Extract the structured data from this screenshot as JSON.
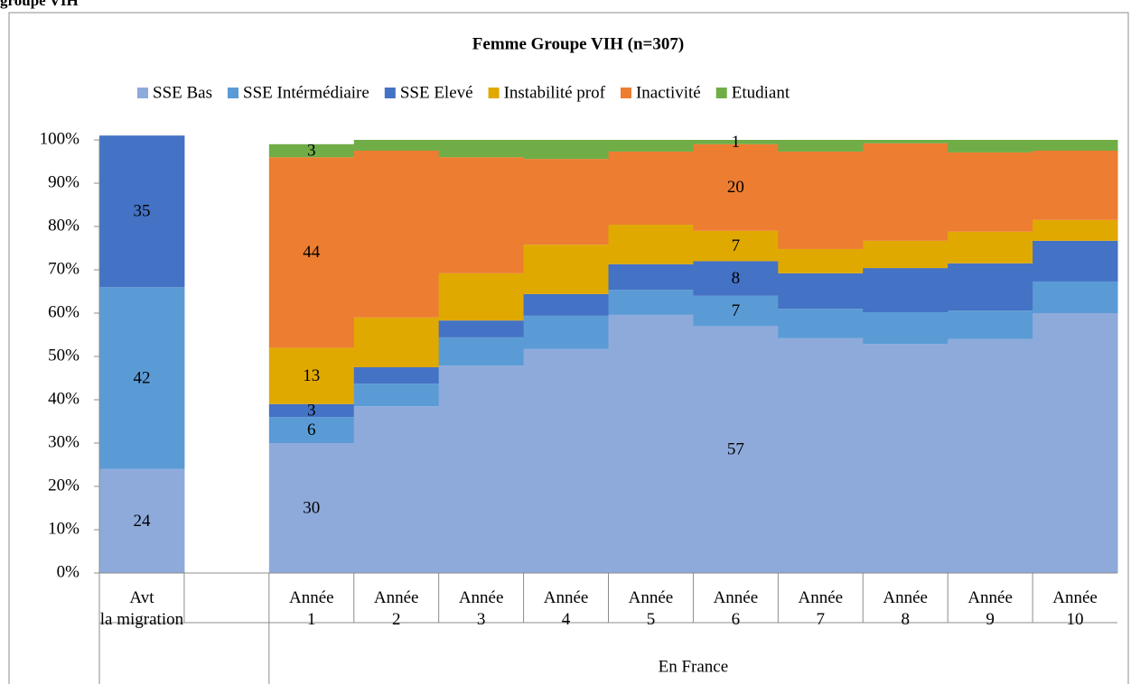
{
  "heading": "groupe VIH",
  "chart_data": {
    "type": "stacked_bar_100",
    "title": "Femme Groupe VIH (n=307)",
    "categories": [
      "Avt\nla migration",
      null,
      "Année\n1",
      "Année\n2",
      "Année\n3",
      "Année\n4",
      "Année\n5",
      "Année\n6",
      "Année\n7",
      "Année\n8",
      "Année\n9",
      "Année\n10"
    ],
    "group_label": "En France",
    "ylim": [
      0,
      100
    ],
    "yticks": [
      {
        "value": 0,
        "label": "0%"
      },
      {
        "value": 10,
        "label": "10%"
      },
      {
        "value": 20,
        "label": "20%"
      },
      {
        "value": 30,
        "label": "30%"
      },
      {
        "value": 40,
        "label": "40%"
      },
      {
        "value": 50,
        "label": "50%"
      },
      {
        "value": 60,
        "label": "60%"
      },
      {
        "value": 70,
        "label": "70%"
      },
      {
        "value": 80,
        "label": "80%"
      },
      {
        "value": 90,
        "label": "90%"
      },
      {
        "value": 100,
        "label": "100%"
      }
    ],
    "legend": "top",
    "series": [
      {
        "name": "SSE Bas",
        "color": "#8eaadb",
        "values": [
          24,
          null,
          30,
          38.5,
          47.9,
          51.7,
          59.6,
          57,
          54.2,
          52.9,
          54,
          60
        ],
        "value_labels": [
          "24",
          null,
          "30",
          null,
          null,
          null,
          null,
          "57",
          null,
          null,
          null,
          null
        ]
      },
      {
        "name": "SSE Intérmédiaire",
        "color": "#5b9bd5",
        "values": [
          42,
          null,
          6,
          5.2,
          6.5,
          7.7,
          5.8,
          7,
          6.8,
          7.3,
          6.6,
          7.3
        ],
        "value_labels": [
          "42",
          null,
          "6",
          null,
          null,
          null,
          null,
          "7",
          null,
          null,
          null,
          null
        ]
      },
      {
        "name": "SSE Elevé",
        "color": "#4472c4",
        "values": [
          35,
          null,
          3,
          3.8,
          3.9,
          5,
          5.9,
          8,
          8.2,
          10.2,
          10.9,
          9.4
        ],
        "value_labels": [
          "35",
          null,
          "3",
          null,
          null,
          null,
          null,
          "8",
          null,
          null,
          null,
          null
        ]
      },
      {
        "name": "Instabilité prof",
        "color": "#e0a900",
        "values": [
          null,
          null,
          13,
          11.5,
          10.9,
          11.4,
          9.1,
          7,
          5.6,
          6.3,
          7.3,
          4.8
        ],
        "value_labels": [
          null,
          null,
          "13",
          null,
          null,
          null,
          null,
          "7",
          null,
          null,
          null,
          null
        ]
      },
      {
        "name": "Inactivité",
        "color": "#ed7d31",
        "values": [
          null,
          null,
          44,
          38.5,
          26.8,
          19.8,
          16.9,
          20,
          22.5,
          22.5,
          18.3,
          16
        ],
        "value_labels": [
          null,
          null,
          "44",
          null,
          null,
          null,
          null,
          "20",
          null,
          null,
          null,
          null
        ]
      },
      {
        "name": "Etudiant",
        "color": "#70ad47",
        "values": [
          null,
          null,
          3,
          2.5,
          4,
          4.4,
          2.7,
          1,
          2.7,
          0.8,
          2.9,
          2.5
        ],
        "value_labels": [
          null,
          null,
          "3",
          null,
          null,
          null,
          null,
          "1",
          null,
          null,
          null,
          null
        ]
      }
    ]
  }
}
